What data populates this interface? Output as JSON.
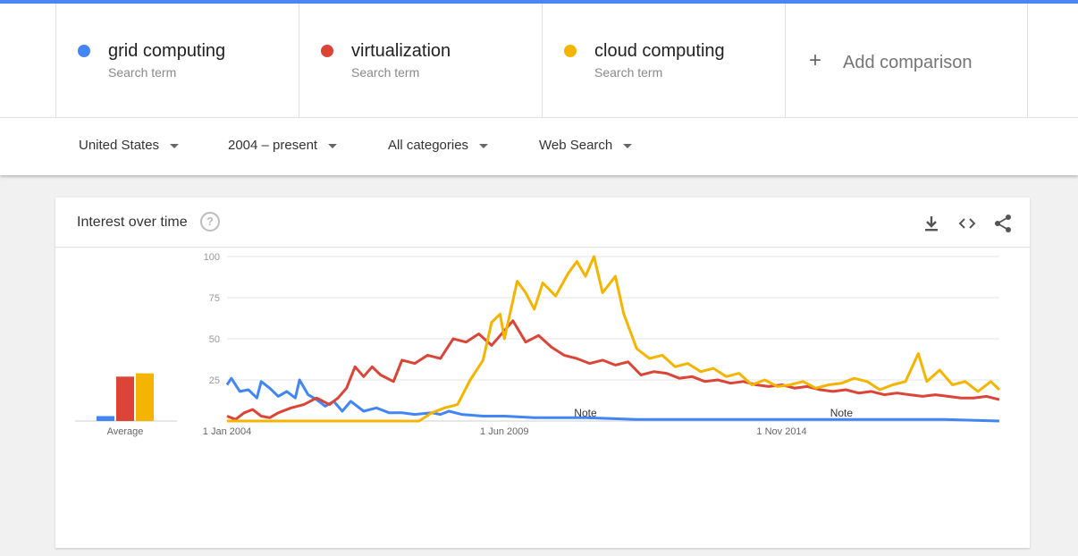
{
  "header": {
    "terms": [
      {
        "name": "grid computing",
        "sub": "Search term",
        "color": "#4285f4"
      },
      {
        "name": "virtualization",
        "sub": "Search term",
        "color": "#db4437"
      },
      {
        "name": "cloud computing",
        "sub": "Search term",
        "color": "#f4b400"
      }
    ],
    "add_comparison": "Add comparison",
    "plus_icon": "+"
  },
  "filters": {
    "region": "United States",
    "time": "2004 – present",
    "category": "All categories",
    "search_type": "Web Search"
  },
  "card": {
    "title": "Interest over time",
    "help_icon": "?"
  },
  "chart_data": {
    "type": "line",
    "title": "",
    "ylim": [
      0,
      100
    ],
    "y_ticks": [
      25,
      50,
      75,
      100
    ],
    "x_start": "2004-01",
    "x_end": "2019-02",
    "x_tick_labels": [
      {
        "label": "1 Jan 2004",
        "date": "2004-01"
      },
      {
        "label": "1 Jun 2009",
        "date": "2009-06"
      },
      {
        "label": "1 Nov 2014",
        "date": "2014-11"
      }
    ],
    "notes": [
      {
        "label": "Note",
        "date": "2011-01"
      },
      {
        "label": "Note",
        "date": "2016-01"
      }
    ],
    "series": [
      {
        "name": "grid computing",
        "color": "#4285f4",
        "points": [
          [
            "2004-01",
            22
          ],
          [
            "2004-02",
            26
          ],
          [
            "2004-04",
            18
          ],
          [
            "2004-06",
            19
          ],
          [
            "2004-08",
            14
          ],
          [
            "2004-09",
            24
          ],
          [
            "2004-11",
            20
          ],
          [
            "2005-01",
            15
          ],
          [
            "2005-03",
            18
          ],
          [
            "2005-05",
            14
          ],
          [
            "2005-06",
            25
          ],
          [
            "2005-08",
            16
          ],
          [
            "2005-10",
            13
          ],
          [
            "2005-12",
            9
          ],
          [
            "2006-02",
            12
          ],
          [
            "2006-04",
            6
          ],
          [
            "2006-06",
            12
          ],
          [
            "2006-09",
            6
          ],
          [
            "2006-12",
            8
          ],
          [
            "2007-03",
            5
          ],
          [
            "2007-06",
            5
          ],
          [
            "2007-09",
            4
          ],
          [
            "2008-01",
            5
          ],
          [
            "2008-03",
            4
          ],
          [
            "2008-05",
            6
          ],
          [
            "2008-08",
            4
          ],
          [
            "2009-01",
            3
          ],
          [
            "2009-06",
            3
          ],
          [
            "2010-01",
            2
          ],
          [
            "2010-06",
            2
          ],
          [
            "2011-01",
            2
          ],
          [
            "2012-01",
            1
          ],
          [
            "2013-01",
            1
          ],
          [
            "2014-01",
            1
          ],
          [
            "2015-01",
            1
          ],
          [
            "2016-01",
            1
          ],
          [
            "2017-01",
            1
          ],
          [
            "2018-01",
            1
          ],
          [
            "2019-02",
            0
          ]
        ]
      },
      {
        "name": "virtualization",
        "color": "#db4437",
        "points": [
          [
            "2004-01",
            3
          ],
          [
            "2004-03",
            1
          ],
          [
            "2004-05",
            5
          ],
          [
            "2004-07",
            7
          ],
          [
            "2004-09",
            3
          ],
          [
            "2004-11",
            2
          ],
          [
            "2005-01",
            5
          ],
          [
            "2005-04",
            8
          ],
          [
            "2005-07",
            10
          ],
          [
            "2005-10",
            14
          ],
          [
            "2006-01",
            10
          ],
          [
            "2006-03",
            14
          ],
          [
            "2006-05",
            20
          ],
          [
            "2006-07",
            33
          ],
          [
            "2006-09",
            27
          ],
          [
            "2006-11",
            33
          ],
          [
            "2007-01",
            28
          ],
          [
            "2007-04",
            24
          ],
          [
            "2007-06",
            37
          ],
          [
            "2007-09",
            35
          ],
          [
            "2007-12",
            40
          ],
          [
            "2008-03",
            38
          ],
          [
            "2008-06",
            50
          ],
          [
            "2008-09",
            48
          ],
          [
            "2008-12",
            53
          ],
          [
            "2009-03",
            46
          ],
          [
            "2009-06",
            55
          ],
          [
            "2009-08",
            61
          ],
          [
            "2009-11",
            48
          ],
          [
            "2010-02",
            52
          ],
          [
            "2010-05",
            45
          ],
          [
            "2010-08",
            40
          ],
          [
            "2010-11",
            38
          ],
          [
            "2011-02",
            35
          ],
          [
            "2011-05",
            37
          ],
          [
            "2011-08",
            34
          ],
          [
            "2011-11",
            36
          ],
          [
            "2012-02",
            28
          ],
          [
            "2012-05",
            30
          ],
          [
            "2012-08",
            29
          ],
          [
            "2012-11",
            26
          ],
          [
            "2013-02",
            27
          ],
          [
            "2013-05",
            24
          ],
          [
            "2013-08",
            25
          ],
          [
            "2013-11",
            23
          ],
          [
            "2014-02",
            24
          ],
          [
            "2014-05",
            22
          ],
          [
            "2014-08",
            21
          ],
          [
            "2014-11",
            22
          ],
          [
            "2015-02",
            20
          ],
          [
            "2015-05",
            21
          ],
          [
            "2015-08",
            19
          ],
          [
            "2015-11",
            18
          ],
          [
            "2016-02",
            19
          ],
          [
            "2016-05",
            17
          ],
          [
            "2016-08",
            18
          ],
          [
            "2016-11",
            16
          ],
          [
            "2017-02",
            17
          ],
          [
            "2017-05",
            16
          ],
          [
            "2017-08",
            15
          ],
          [
            "2017-11",
            16
          ],
          [
            "2018-02",
            15
          ],
          [
            "2018-05",
            14
          ],
          [
            "2018-08",
            14
          ],
          [
            "2018-11",
            15
          ],
          [
            "2019-02",
            13
          ]
        ]
      },
      {
        "name": "cloud computing",
        "color": "#f4b400",
        "points": [
          [
            "2004-01",
            0
          ],
          [
            "2006-01",
            0
          ],
          [
            "2007-01",
            0
          ],
          [
            "2007-10",
            0
          ],
          [
            "2008-01",
            5
          ],
          [
            "2008-04",
            8
          ],
          [
            "2008-07",
            10
          ],
          [
            "2008-10",
            25
          ],
          [
            "2009-01",
            37
          ],
          [
            "2009-03",
            60
          ],
          [
            "2009-05",
            65
          ],
          [
            "2009-06",
            50
          ],
          [
            "2009-09",
            85
          ],
          [
            "2009-11",
            78
          ],
          [
            "2010-01",
            68
          ],
          [
            "2010-03",
            84
          ],
          [
            "2010-06",
            76
          ],
          [
            "2010-09",
            90
          ],
          [
            "2010-11",
            97
          ],
          [
            "2011-01",
            88
          ],
          [
            "2011-03",
            100
          ],
          [
            "2011-05",
            78
          ],
          [
            "2011-08",
            88
          ],
          [
            "2011-10",
            65
          ],
          [
            "2012-01",
            44
          ],
          [
            "2012-04",
            38
          ],
          [
            "2012-07",
            40
          ],
          [
            "2012-10",
            33
          ],
          [
            "2013-01",
            35
          ],
          [
            "2013-04",
            30
          ],
          [
            "2013-07",
            32
          ],
          [
            "2013-10",
            27
          ],
          [
            "2014-01",
            29
          ],
          [
            "2014-04",
            22
          ],
          [
            "2014-07",
            25
          ],
          [
            "2014-10",
            21
          ],
          [
            "2015-01",
            22
          ],
          [
            "2015-04",
            24
          ],
          [
            "2015-07",
            20
          ],
          [
            "2015-10",
            22
          ],
          [
            "2016-01",
            23
          ],
          [
            "2016-04",
            26
          ],
          [
            "2016-07",
            24
          ],
          [
            "2016-10",
            19
          ],
          [
            "2017-01",
            22
          ],
          [
            "2017-04",
            24
          ],
          [
            "2017-07",
            41
          ],
          [
            "2017-09",
            24
          ],
          [
            "2017-12",
            31
          ],
          [
            "2018-03",
            22
          ],
          [
            "2018-06",
            24
          ],
          [
            "2018-09",
            18
          ],
          [
            "2018-12",
            24
          ],
          [
            "2019-02",
            19
          ]
        ]
      }
    ],
    "averages": [
      {
        "name": "grid computing",
        "value": 3
      },
      {
        "name": "virtualization",
        "value": 27
      },
      {
        "name": "cloud computing",
        "value": 29
      }
    ],
    "avg_label": "Average"
  }
}
